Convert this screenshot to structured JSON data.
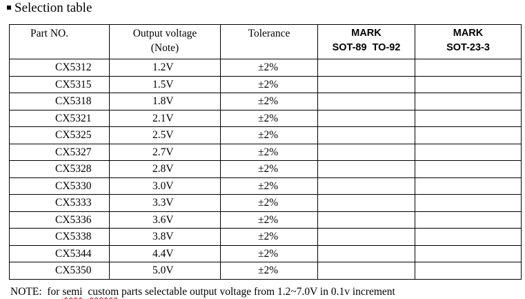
{
  "title": "Selection table",
  "headers": {
    "part_no": "Part NO.",
    "output_voltage_line1": "Output voltage",
    "output_voltage_line2": "(Note)",
    "tolerance": "Tolerance",
    "mark1_line1": "MARK",
    "mark1_line2": "SOT-89  TO-92",
    "mark2_line1": "MARK",
    "mark2_line2": "SOT-23-3"
  },
  "rows": [
    {
      "part": "CX5312",
      "voltage": "1.2V",
      "tolerance": "±2%",
      "mark1": "",
      "mark2": ""
    },
    {
      "part": "CX5315",
      "voltage": "1.5V",
      "tolerance": "±2%",
      "mark1": "",
      "mark2": ""
    },
    {
      "part": "CX5318",
      "voltage": "1.8V",
      "tolerance": "±2%",
      "mark1": "",
      "mark2": ""
    },
    {
      "part": "CX5321",
      "voltage": "2.1V",
      "tolerance": "±2%",
      "mark1": "",
      "mark2": ""
    },
    {
      "part": "CX5325",
      "voltage": "2.5V",
      "tolerance": "±2%",
      "mark1": "",
      "mark2": ""
    },
    {
      "part": "CX5327",
      "voltage": "2.7V",
      "tolerance": "±2%",
      "mark1": "",
      "mark2": ""
    },
    {
      "part": "CX5328",
      "voltage": "2.8V",
      "tolerance": "±2%",
      "mark1": "",
      "mark2": ""
    },
    {
      "part": "CX5330",
      "voltage": "3.0V",
      "tolerance": "±2%",
      "mark1": "",
      "mark2": ""
    },
    {
      "part": "CX5333",
      "voltage": "3.3V",
      "tolerance": "±2%",
      "mark1": "",
      "mark2": ""
    },
    {
      "part": "CX5336",
      "voltage": "3.6V",
      "tolerance": "±2%",
      "mark1": "",
      "mark2": ""
    },
    {
      "part": "CX5338",
      "voltage": "3.8V",
      "tolerance": "±2%",
      "mark1": "",
      "mark2": ""
    },
    {
      "part": "CX5344",
      "voltage": "4.4V",
      "tolerance": "±2%",
      "mark1": "",
      "mark2": ""
    },
    {
      "part": "CX5350",
      "voltage": "5.0V",
      "tolerance": "±2%",
      "mark1": "",
      "mark2": ""
    }
  ],
  "note": {
    "prefix": "NOTE:  for ",
    "semi": "semi",
    "gap": "  ",
    "custom": "custom",
    "suffix": " parts selectable output voltage from 1.2~7.0V in 0.1v increment"
  }
}
